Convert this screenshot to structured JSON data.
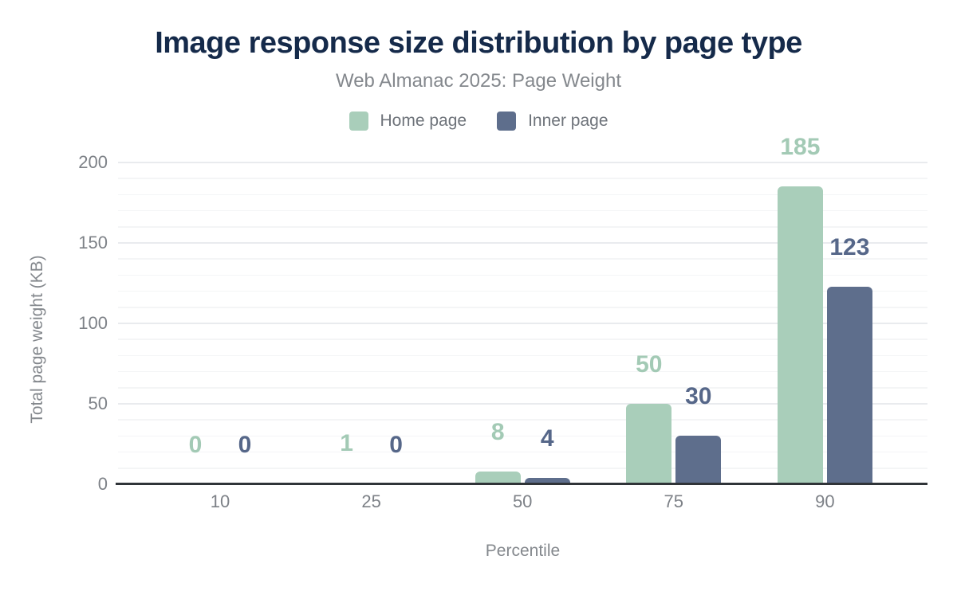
{
  "header": {
    "title": "Image response size distribution by page type",
    "subtitle": "Web Almanac 2025: Page Weight"
  },
  "colors": {
    "title": "#152a4a",
    "muted_text": "#84888d",
    "tick_text": "#7d8187",
    "legend_text": "#6e737a",
    "axis_line": "#303438",
    "grid_major": "#e9ebee",
    "grid_minor": "#f4f5f6",
    "home_page": "#a9ceba",
    "home_page_label": "#a3cab5",
    "inner_page": "#5e6e8c",
    "inner_page_label": "#566789"
  },
  "chart_data": {
    "type": "bar",
    "title": "Image response size distribution by page type",
    "subtitle": "Web Almanac 2025: Page Weight",
    "categories": [
      "10",
      "25",
      "50",
      "75",
      "90"
    ],
    "series": [
      {
        "name": "Home page",
        "color": "#a9ceba",
        "label_color": "#a3cab5",
        "values": [
          0,
          1,
          8,
          50,
          185
        ]
      },
      {
        "name": "Inner page",
        "color": "#5e6e8c",
        "label_color": "#566789",
        "values": [
          0,
          0,
          4,
          30,
          123
        ]
      }
    ],
    "xlabel": "Percentile",
    "ylabel": "Total page weight (KB)",
    "ylim": [
      0,
      200
    ],
    "yticks": [
      0,
      50,
      100,
      150,
      200
    ],
    "minor_grid_step": 10,
    "grid": true,
    "legend_position": "top",
    "value_labels_shown": true
  }
}
